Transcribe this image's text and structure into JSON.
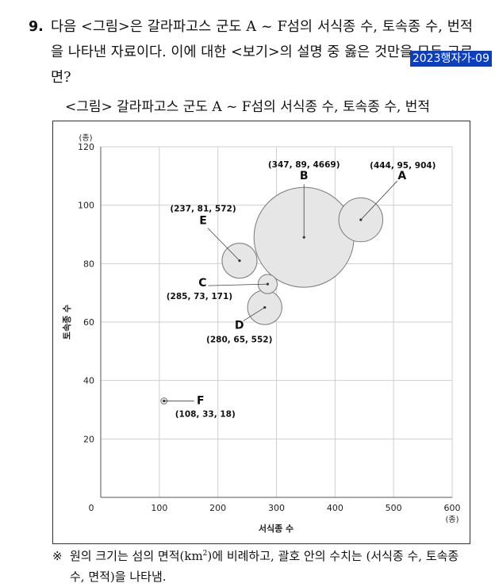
{
  "question": {
    "number": "9.",
    "text": "다음 <그림>은 갈라파고스 군도 A ~ F섬의 서식종 수, 토속종 수, 번적을 나타낸 자료이다. 이에 대한 <보기>의 설명 중 옳은 것만을 모두 고르면?",
    "tag": "2023행자가-09"
  },
  "figure_title": "<그림> 갈라파고스 군도 A ~ F섬의 서식종 수, 토속종 수, 번적",
  "chart_data": {
    "type": "scatter",
    "subtype": "bubble",
    "xlabel": "서식종 수",
    "ylabel": "토속종 수",
    "x_unit": "(종)",
    "y_unit": "(종)",
    "xlim": [
      0,
      600
    ],
    "ylim": [
      0,
      120
    ],
    "xticks": [
      0,
      100,
      200,
      300,
      400,
      500,
      600
    ],
    "yticks": [
      20,
      40,
      60,
      80,
      100,
      120
    ],
    "grid": true,
    "bubble_color": "#e6e6e6",
    "points": [
      {
        "label": "A",
        "x": 444,
        "y": 95,
        "area": 904,
        "annotation": "(444, 95, 904)"
      },
      {
        "label": "B",
        "x": 347,
        "y": 89,
        "area": 4669,
        "annotation": "(347, 89, 4669)"
      },
      {
        "label": "C",
        "x": 285,
        "y": 73,
        "area": 171,
        "annotation": "(285, 73, 171)"
      },
      {
        "label": "D",
        "x": 280,
        "y": 65,
        "area": 552,
        "annotation": "(280, 65, 552)"
      },
      {
        "label": "E",
        "x": 237,
        "y": 81,
        "area": 572,
        "annotation": "(237, 81, 572)"
      },
      {
        "label": "F",
        "x": 108,
        "y": 33,
        "area": 18,
        "annotation": "(108, 33, 18)"
      }
    ]
  },
  "note": {
    "mark": "※",
    "before_sup": "원의 크기는 섬의 면적(km",
    "sup": "2",
    "after_sup": ")에 비례하고, 괄호 안의 수치는 (서식종 수, 토속종 수, 면적)을 나타냄."
  }
}
